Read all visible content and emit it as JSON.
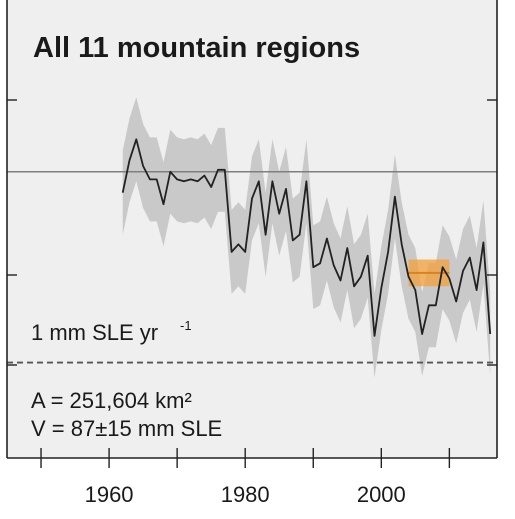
{
  "chart_data": {
    "type": "line",
    "title": "All 11 mountain regions",
    "xlabel": "",
    "ylabel": "",
    "xlim": [
      1945,
      2017
    ],
    "ylim": [
      -1.5,
      0.9
    ],
    "x_ticks": [
      1960,
      1980,
      2000
    ],
    "x_tick_labels": [
      "1960",
      "1980",
      "2000"
    ],
    "reference_line_label": "1 mm SLE yr",
    "reference_line_label_sup": "-1",
    "reference_line_value": -1.0,
    "zero_line_value": 0,
    "annotations": [
      "A = 251,604 km²",
      "V = 87±15 mm SLE"
    ],
    "grid": false,
    "series": [
      {
        "color": "#222222",
        "x": [
          1962,
          1963,
          1964,
          1965,
          1966,
          1967,
          1968,
          1969,
          1970,
          1971,
          1972,
          1973,
          1974,
          1975,
          1976,
          1977,
          1978,
          1979,
          1980,
          1981,
          1982,
          1983,
          1984,
          1985,
          1986,
          1987,
          1988,
          1989,
          1990,
          1991,
          1992,
          1993,
          1994,
          1995,
          1996,
          1997,
          1998,
          1999,
          2000,
          2001,
          2002,
          2003,
          2004,
          2005,
          2006,
          2007,
          2008,
          2009,
          2010,
          2011,
          2012,
          2013,
          2014,
          2015,
          2016
        ],
        "y": [
          -0.11,
          0.06,
          0.17,
          0.03,
          -0.04,
          -0.04,
          -0.17,
          0.0,
          -0.04,
          -0.05,
          -0.04,
          -0.05,
          -0.02,
          -0.08,
          0.01,
          0.01,
          -0.42,
          -0.38,
          -0.42,
          -0.14,
          -0.05,
          -0.33,
          -0.05,
          -0.22,
          -0.09,
          -0.36,
          -0.33,
          -0.05,
          -0.5,
          -0.48,
          -0.35,
          -0.49,
          -0.57,
          -0.4,
          -0.6,
          -0.55,
          -0.44,
          -0.86,
          -0.61,
          -0.42,
          -0.13,
          -0.38,
          -0.55,
          -0.62,
          -0.85,
          -0.7,
          -0.7,
          -0.5,
          -0.56,
          -0.68,
          -0.52,
          -0.45,
          -0.62,
          -0.37,
          -0.85
        ],
        "uncertainty_halfwidth": 0.22
      }
    ],
    "highlight_band": {
      "color": "#f2a03a",
      "x_start": 2004,
      "x_end": 2010,
      "y_low": -0.6,
      "y_high": -0.46,
      "center": -0.53
    },
    "band_color": "#c9c9c9",
    "background": "#efefef"
  }
}
